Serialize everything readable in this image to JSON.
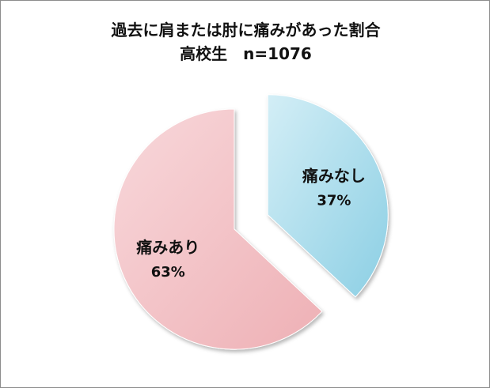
{
  "chart_data": {
    "type": "pie",
    "title": "過去に肩または肘に痛みがあった割合",
    "subtitle": "高校生　n=1076",
    "slices": [
      {
        "label": "痛みなし",
        "value": 37,
        "display": "37%",
        "color": "#a5d9ea",
        "exploded": true
      },
      {
        "label": "痛みあり",
        "value": 63,
        "display": "63%",
        "color": "#f4c2c5",
        "exploded": false
      }
    ],
    "legend": false
  }
}
